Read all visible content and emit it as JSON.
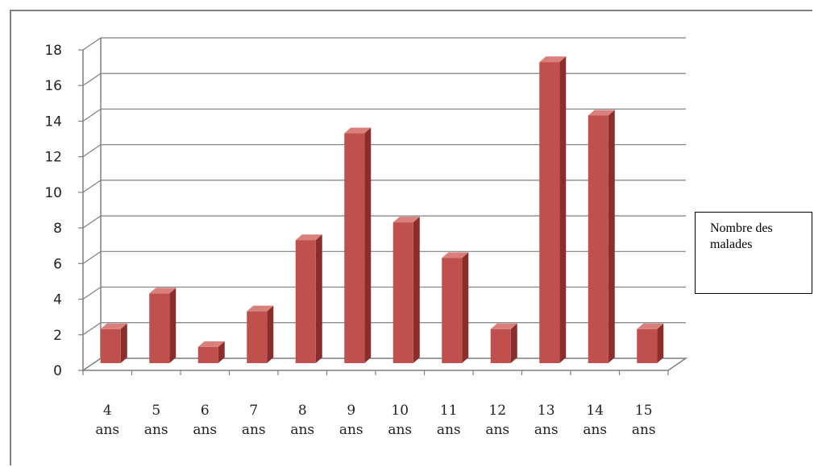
{
  "chart_data": {
    "type": "bar",
    "categories": [
      [
        "4",
        "ans"
      ],
      [
        "5",
        "ans"
      ],
      [
        "6",
        "ans"
      ],
      [
        "7",
        "ans"
      ],
      [
        "8",
        "ans"
      ],
      [
        "9",
        "ans"
      ],
      [
        "10",
        "ans"
      ],
      [
        "11",
        "ans"
      ],
      [
        "12",
        "ans"
      ],
      [
        "13",
        "ans"
      ],
      [
        "14",
        "ans"
      ],
      [
        "15",
        "ans"
      ]
    ],
    "values": [
      2,
      4,
      1,
      3,
      7,
      13,
      8,
      6,
      2,
      17,
      14,
      2
    ],
    "series": [
      {
        "name": "Nombre des malades",
        "values": [
          2,
          4,
          1,
          3,
          7,
          13,
          8,
          6,
          2,
          17,
          14,
          2
        ]
      }
    ],
    "yticks": [
      "0",
      "2",
      "4",
      "6",
      "8",
      "10",
      "12",
      "14",
      "16",
      "18"
    ],
    "ylim": [
      0,
      18
    ],
    "grid": true,
    "style": "3d-column",
    "legend_position": "right",
    "colors": {
      "bar_front": "#c0504d",
      "bar_side": "#8b2e2b",
      "bar_top": "#d9807c",
      "grid": "#7f7f7f"
    }
  },
  "legend": {
    "text": "Nombre des malades"
  }
}
